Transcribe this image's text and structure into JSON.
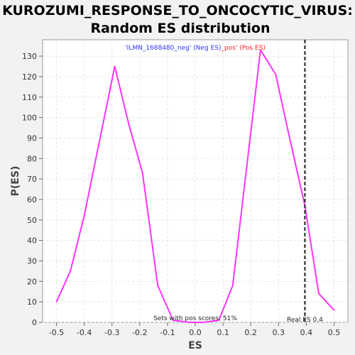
{
  "chart_data": {
    "type": "line",
    "title_line1": "KUROZUMI_RESPONSE_TO_ONCOCYTIC_VIRUS:",
    "title_line2": "Random ES distribution",
    "xlabel": "ES",
    "ylabel": "P(ES)",
    "xlim": [
      -0.55,
      0.55
    ],
    "ylim": [
      0,
      138
    ],
    "x_ticks": [
      -0.5,
      -0.4,
      -0.3,
      -0.2,
      -0.1,
      0.0,
      0.1,
      0.2,
      0.3,
      0.4,
      0.5
    ],
    "x_tick_labels": [
      "-0.5",
      "-0.4",
      "-0.3",
      "-0.2",
      "-0.1",
      "0.0",
      "0.1",
      "0.2",
      "0.3",
      "0.4",
      "0.5"
    ],
    "y_ticks": [
      0,
      10,
      20,
      30,
      40,
      50,
      60,
      70,
      80,
      90,
      100,
      110,
      120,
      130
    ],
    "y_tick_labels": [
      "0",
      "10",
      "20",
      "30",
      "40",
      "50",
      "60",
      "70",
      "80",
      "90",
      "100",
      "110",
      "120",
      "130"
    ],
    "grid": true,
    "legend": {
      "neg_label": "'ILMN_1688480_neg' (Neg ES)",
      "pos_label": "_pos' (Pos ES)",
      "neg_color": "#3333ff",
      "pos_color": "#ff2222",
      "placement": "top-center"
    },
    "series": [
      {
        "color": "#ff33ff",
        "x": [
          -0.5,
          -0.45,
          -0.4,
          -0.29,
          -0.24,
          -0.19,
          -0.135,
          -0.08,
          -0.02,
          0.03,
          0.085,
          0.135,
          0.235,
          0.29,
          0.335,
          0.395,
          0.445,
          0.5
        ],
        "y": [
          10,
          25,
          52,
          125,
          97,
          73,
          18,
          1,
          0,
          0,
          1,
          18,
          133,
          121,
          93,
          57,
          14,
          6
        ]
      }
    ],
    "real_es": {
      "value": 0.395,
      "label": "Real ES 0.4"
    },
    "pos_scores_text": "Sets with pos scores: 51%"
  }
}
